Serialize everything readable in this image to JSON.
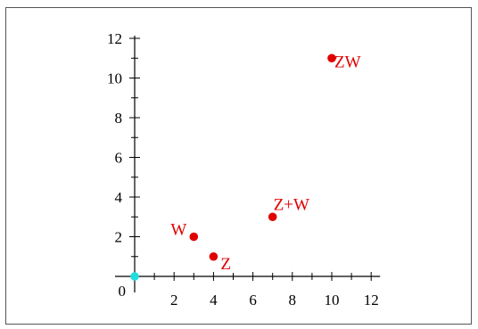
{
  "chart_data": {
    "type": "scatter",
    "title": "",
    "xlabel": "",
    "ylabel": "",
    "xlim": [
      0,
      12
    ],
    "ylim": [
      0,
      12
    ],
    "xticks": [
      2,
      4,
      6,
      8,
      10,
      12
    ],
    "yticks": [
      2,
      4,
      6,
      8,
      10,
      12
    ],
    "origin_label": "0",
    "grid": false,
    "points": [
      {
        "label": "Z",
        "x": 4,
        "y": 1,
        "color": "#e00000"
      },
      {
        "label": "W",
        "x": 3,
        "y": 2,
        "color": "#e00000"
      },
      {
        "label": "Z+W",
        "x": 7,
        "y": 3,
        "color": "#e00000"
      },
      {
        "label": "ZW",
        "x": 10,
        "y": 11,
        "color": "#e00000"
      },
      {
        "label": "",
        "x": 0,
        "y": 0,
        "color": "#22dddd"
      }
    ]
  }
}
